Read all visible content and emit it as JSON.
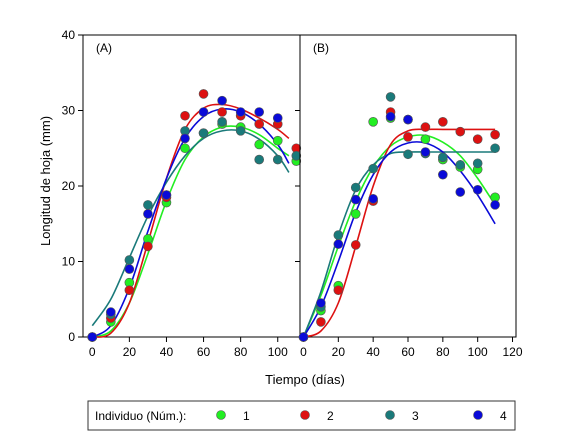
{
  "chart_data": {
    "type": "scatter",
    "ylabel": "Longitud de hoja (mm)",
    "xlabel": "Tiempo (días)",
    "ylim": [
      0,
      40
    ],
    "yticks": [
      0,
      10,
      20,
      30,
      40
    ],
    "legend": {
      "title": "Individuo (Núm.):",
      "placement": "bottom",
      "entries": [
        "1",
        "2",
        "3",
        "4"
      ]
    },
    "series_colors": [
      "#22ee22",
      "#dd1111",
      "#1a7a7a",
      "#0a0ad8"
    ],
    "panels": [
      {
        "label": "(A)",
        "xlim": [
          -5,
          112
        ],
        "xticks": [
          0,
          20,
          40,
          60,
          80,
          100
        ],
        "series": [
          {
            "name": "1",
            "points": [
              [
                0,
                0
              ],
              [
                10,
                2
              ],
              [
                20,
                7.2
              ],
              [
                30,
                13
              ],
              [
                40,
                17.8
              ],
              [
                50,
                25
              ],
              [
                60,
                27
              ],
              [
                70,
                28.2
              ],
              [
                80,
                27.8
              ],
              [
                90,
                25.5
              ],
              [
                100,
                26
              ],
              [
                110,
                23.3
              ]
            ],
            "curve": [
              [
                0,
                0
              ],
              [
                10,
                0.8
              ],
              [
                20,
                4.5
              ],
              [
                30,
                11
              ],
              [
                40,
                18
              ],
              [
                50,
                23.5
              ],
              [
                60,
                26.5
              ],
              [
                70,
                27.8
              ],
              [
                80,
                27.8
              ],
              [
                90,
                26.8
              ],
              [
                100,
                25
              ],
              [
                106,
                24
              ]
            ]
          },
          {
            "name": "2",
            "points": [
              [
                0,
                0
              ],
              [
                10,
                2.5
              ],
              [
                20,
                6.2
              ],
              [
                30,
                12
              ],
              [
                40,
                18.5
              ],
              [
                50,
                29.3
              ],
              [
                60,
                32.2
              ],
              [
                70,
                29.8
              ],
              [
                80,
                29.3
              ],
              [
                90,
                28.2
              ],
              [
                100,
                28.2
              ],
              [
                110,
                25
              ]
            ],
            "curve": [
              [
                0,
                0
              ],
              [
                10,
                0.5
              ],
              [
                20,
                4.5
              ],
              [
                30,
                12.5
              ],
              [
                40,
                21
              ],
              [
                50,
                27.5
              ],
              [
                60,
                30.3
              ],
              [
                70,
                30.8
              ],
              [
                80,
                30.2
              ],
              [
                90,
                29
              ],
              [
                100,
                27.5
              ],
              [
                106,
                26.3
              ]
            ]
          },
          {
            "name": "3",
            "points": [
              [
                0,
                0
              ],
              [
                10,
                3
              ],
              [
                20,
                10.2
              ],
              [
                30,
                17.5
              ],
              [
                40,
                18.8
              ],
              [
                50,
                27.3
              ],
              [
                60,
                27
              ],
              [
                70,
                28.5
              ],
              [
                80,
                27.3
              ],
              [
                90,
                23.5
              ],
              [
                100,
                23.5
              ],
              [
                110,
                24
              ]
            ],
            "curve": [
              [
                0,
                1.5
              ],
              [
                10,
                5
              ],
              [
                20,
                10.5
              ],
              [
                30,
                16
              ],
              [
                40,
                20.5
              ],
              [
                50,
                24
              ],
              [
                60,
                26.3
              ],
              [
                70,
                27.3
              ],
              [
                80,
                27.3
              ],
              [
                90,
                26.2
              ],
              [
                100,
                24
              ],
              [
                106,
                21.8
              ]
            ]
          },
          {
            "name": "4",
            "points": [
              [
                0,
                0
              ],
              [
                10,
                3.3
              ],
              [
                20,
                9
              ],
              [
                30,
                16.3
              ],
              [
                40,
                18.8
              ],
              [
                50,
                26.3
              ],
              [
                60,
                29.8
              ],
              [
                70,
                31.3
              ],
              [
                80,
                29.8
              ],
              [
                90,
                29.8
              ],
              [
                100,
                29
              ]
            ],
            "curve": [
              [
                0,
                0
              ],
              [
                10,
                1.5
              ],
              [
                20,
                6.5
              ],
              [
                30,
                14
              ],
              [
                40,
                21
              ],
              [
                50,
                26.3
              ],
              [
                60,
                29.2
              ],
              [
                70,
                30.2
              ],
              [
                80,
                29.8
              ],
              [
                90,
                28.2
              ],
              [
                100,
                25.5
              ],
              [
                106,
                23
              ]
            ]
          }
        ]
      },
      {
        "label": "(B)",
        "xlim": [
          -2,
          122
        ],
        "xticks": [
          0,
          20,
          40,
          60,
          80,
          100,
          120
        ],
        "series": [
          {
            "name": "1",
            "points": [
              [
                0,
                0
              ],
              [
                10,
                3.5
              ],
              [
                20,
                6.8
              ],
              [
                30,
                16.3
              ],
              [
                40,
                28.5
              ],
              [
                50,
                29
              ],
              [
                60,
                28.8
              ],
              [
                70,
                26.2
              ],
              [
                80,
                23.5
              ],
              [
                90,
                22.5
              ],
              [
                100,
                22.2
              ],
              [
                110,
                18.5
              ]
            ],
            "curve": [
              [
                0,
                0
              ],
              [
                10,
                5.5
              ],
              [
                20,
                12
              ],
              [
                30,
                18
              ],
              [
                40,
                22.5
              ],
              [
                50,
                25.3
              ],
              [
                60,
                26.5
              ],
              [
                70,
                26.7
              ],
              [
                80,
                25.8
              ],
              [
                90,
                24
              ],
              [
                100,
                21
              ],
              [
                110,
                17.5
              ]
            ]
          },
          {
            "name": "2",
            "points": [
              [
                0,
                0
              ],
              [
                10,
                2
              ],
              [
                20,
                6.2
              ],
              [
                30,
                12.2
              ],
              [
                40,
                18
              ],
              [
                50,
                29.8
              ],
              [
                60,
                26.5
              ],
              [
                70,
                27.8
              ],
              [
                80,
                28.5
              ],
              [
                90,
                27.2
              ],
              [
                100,
                26.2
              ],
              [
                110,
                26.8
              ]
            ],
            "curve": [
              [
                0,
                0
              ],
              [
                10,
                0.8
              ],
              [
                20,
                4.5
              ],
              [
                30,
                12
              ],
              [
                40,
                20
              ],
              [
                50,
                25.5
              ],
              [
                60,
                27.3
              ],
              [
                70,
                27.5
              ],
              [
                80,
                27.5
              ],
              [
                90,
                27.5
              ],
              [
                100,
                27.5
              ],
              [
                110,
                27.5
              ]
            ]
          },
          {
            "name": "3",
            "points": [
              [
                0,
                0
              ],
              [
                10,
                4
              ],
              [
                20,
                13.5
              ],
              [
                30,
                19.8
              ],
              [
                40,
                22.3
              ],
              [
                50,
                31.8
              ],
              [
                60,
                24.2
              ],
              [
                70,
                24.3
              ],
              [
                80,
                23.8
              ],
              [
                90,
                22.8
              ],
              [
                100,
                23
              ],
              [
                110,
                25
              ]
            ],
            "curve": [
              [
                0,
                0
              ],
              [
                10,
                6
              ],
              [
                20,
                13.5
              ],
              [
                30,
                19.5
              ],
              [
                40,
                22.8
              ],
              [
                50,
                24.3
              ],
              [
                60,
                24.5
              ],
              [
                70,
                24.5
              ],
              [
                80,
                24.5
              ],
              [
                90,
                24.5
              ],
              [
                100,
                24.5
              ],
              [
                110,
                24.5
              ]
            ]
          },
          {
            "name": "4",
            "points": [
              [
                0,
                0
              ],
              [
                10,
                4.5
              ],
              [
                20,
                12.3
              ],
              [
                30,
                18.2
              ],
              [
                40,
                18.3
              ],
              [
                50,
                29.2
              ],
              [
                60,
                28.8
              ],
              [
                70,
                24.5
              ],
              [
                80,
                21.5
              ],
              [
                90,
                19.2
              ],
              [
                100,
                19.5
              ],
              [
                110,
                17.5
              ]
            ],
            "curve": [
              [
                0,
                0
              ],
              [
                10,
                4
              ],
              [
                20,
                10
              ],
              [
                30,
                16.5
              ],
              [
                40,
                21.5
              ],
              [
                50,
                24.5
              ],
              [
                60,
                25.7
              ],
              [
                70,
                25.7
              ],
              [
                80,
                24.5
              ],
              [
                90,
                22
              ],
              [
                100,
                18.8
              ],
              [
                110,
                15
              ]
            ]
          }
        ]
      }
    ]
  }
}
